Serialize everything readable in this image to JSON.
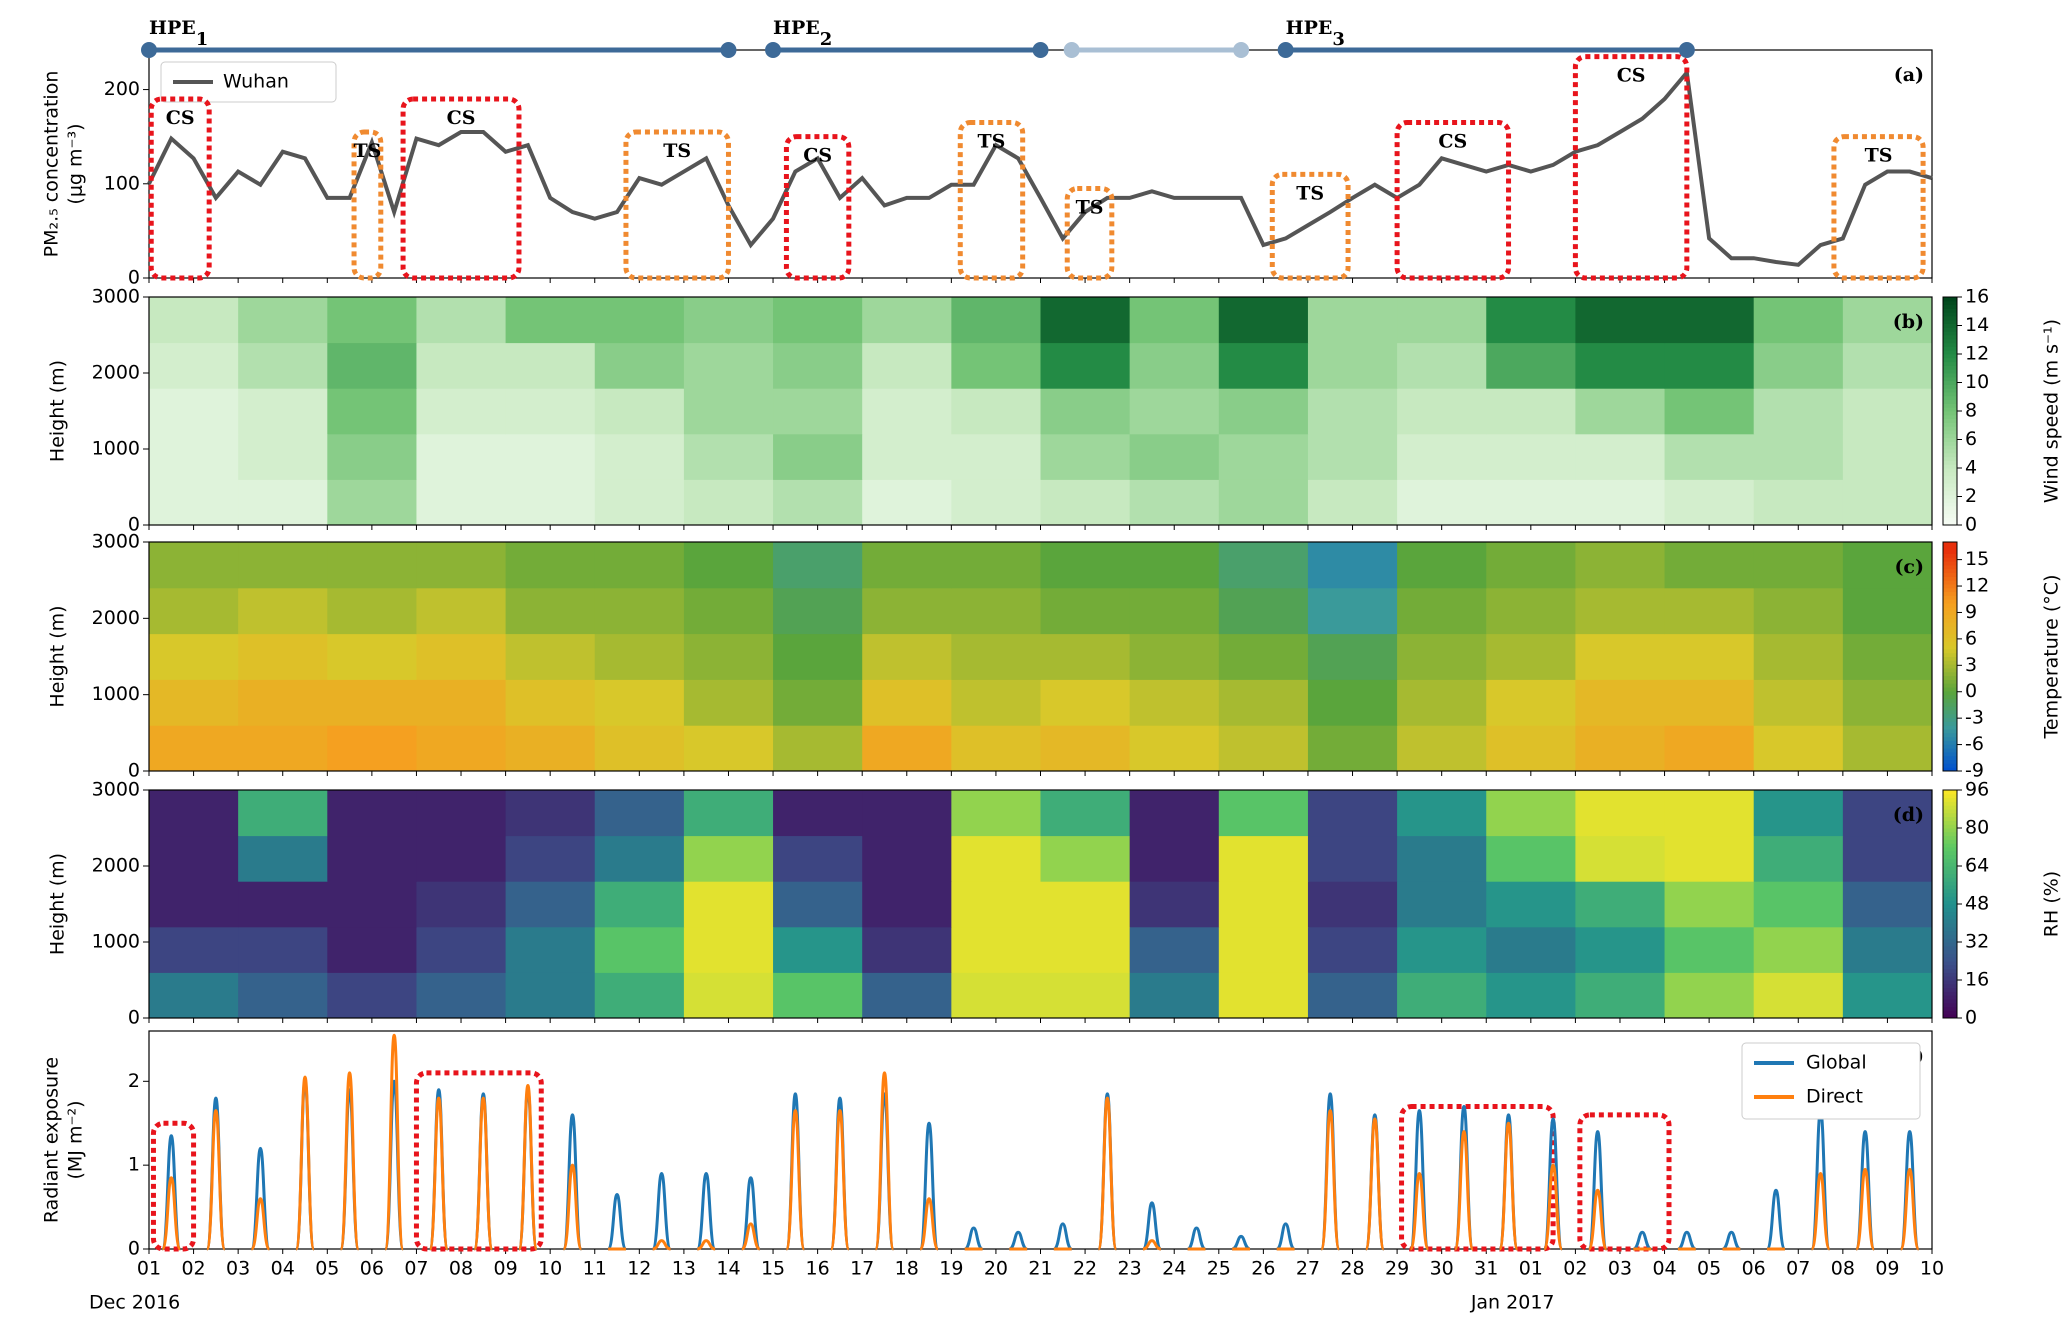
{
  "chart_data": [
    {
      "type": "line",
      "panel_label": "(a)",
      "ylabel": [
        "PM₂.₅ concentration",
        "(μg m⁻³)"
      ],
      "x": [
        0,
        0.5,
        1,
        1.5,
        2,
        2.5,
        3,
        3.5,
        4,
        4.5,
        5,
        5.5,
        6,
        6.5,
        7,
        7.5,
        8,
        8.5,
        9,
        9.5,
        10,
        10.5,
        11,
        11.5,
        12,
        12.5,
        13,
        13.5,
        14,
        14.5,
        15,
        15.5,
        16,
        16.5,
        17,
        17.5,
        18,
        18.5,
        19,
        19.5,
        20,
        20.5,
        21,
        21.5,
        22,
        22.5,
        23,
        23.5,
        24,
        24.5,
        25,
        25.5,
        26,
        26.5,
        27,
        27.5,
        28,
        28.5,
        29,
        29.5,
        30,
        30.5,
        31,
        31.5,
        32,
        32.5,
        33,
        33.5,
        34,
        34.5,
        35,
        35.5,
        36,
        36.5,
        37,
        37.5,
        38,
        38.5,
        39,
        39.5,
        40
      ],
      "series": [
        {
          "name": "Wuhan",
          "color": "#555555",
          "values": [
            100,
            148,
            127,
            85,
            113,
            99,
            134,
            127,
            85,
            85,
            144,
            70,
            148,
            141,
            155,
            155,
            134,
            141,
            85,
            70,
            63,
            70,
            106,
            99,
            113,
            127,
            77,
            35,
            63,
            113,
            127,
            85,
            106,
            77,
            85,
            85,
            99,
            99,
            141,
            127,
            85,
            42,
            70,
            85,
            85,
            92,
            85,
            85,
            85,
            85,
            35,
            42,
            56,
            70,
            85,
            99,
            85,
            99,
            127,
            120,
            113,
            120,
            113,
            120,
            134,
            141,
            155,
            169,
            190,
            218,
            42,
            21,
            21,
            17,
            14,
            35,
            42,
            99,
            113,
            113,
            106
          ]
        }
      ],
      "xlim": [
        0,
        40
      ],
      "ylim": [
        0,
        242
      ],
      "yticks": [
        0,
        100,
        200
      ],
      "annotations": [
        {
          "text": "CS",
          "color": "#e8141c",
          "x0": 0.05,
          "x1": 1.35,
          "y0": 0,
          "y1": 190
        },
        {
          "text": "TS",
          "color": "#f08a30",
          "x0": 4.6,
          "x1": 5.2,
          "y0": 0,
          "y1": 155
        },
        {
          "text": "CS",
          "color": "#e8141c",
          "x0": 5.7,
          "x1": 8.3,
          "y0": 0,
          "y1": 190
        },
        {
          "text": "TS",
          "color": "#f08a30",
          "x0": 10.7,
          "x1": 13.0,
          "y0": 0,
          "y1": 155
        },
        {
          "text": "CS",
          "color": "#e8141c",
          "x0": 14.3,
          "x1": 15.7,
          "y0": 0,
          "y1": 150
        },
        {
          "text": "TS",
          "color": "#f08a30",
          "x0": 18.2,
          "x1": 19.6,
          "y0": 0,
          "y1": 165
        },
        {
          "text": "TS",
          "color": "#f08a30",
          "x0": 20.6,
          "x1": 21.6,
          "y0": 0,
          "y1": 95
        },
        {
          "text": "TS",
          "color": "#f08a30",
          "x0": 25.2,
          "x1": 26.9,
          "y0": 0,
          "y1": 110
        },
        {
          "text": "CS",
          "color": "#e8141c",
          "x0": 28.0,
          "x1": 30.5,
          "y0": 0,
          "y1": 165
        },
        {
          "text": "CS",
          "color": "#e8141c",
          "x0": 32.0,
          "x1": 34.5,
          "y0": 0,
          "y1": 235
        },
        {
          "text": "TS",
          "color": "#f08a30",
          "x0": 37.8,
          "x1": 39.8,
          "y0": 0,
          "y1": 150
        }
      ],
      "events": [
        {
          "name": "HPE",
          "sub": "1",
          "start": 0,
          "end": 13,
          "color": "#3d6a98"
        },
        {
          "name": "HPE",
          "sub": "2",
          "start": 14,
          "end": 20,
          "color": "#3d6a98"
        },
        {
          "start": 20.7,
          "end": 24.5,
          "color": "#a9bfd4"
        },
        {
          "name": "HPE",
          "sub": "3",
          "start": 25.5,
          "end": 34.5,
          "color": "#3d6a98"
        }
      ]
    },
    {
      "type": "heatmap",
      "panel_label": "(b)",
      "ylabel": "Height (m)",
      "colorbar_label": "Wind speed (m s⁻¹)",
      "x_edges": [
        0,
        2,
        4,
        6,
        8,
        10,
        12,
        14,
        16,
        18,
        20,
        22,
        24,
        26,
        28,
        30,
        32,
        34,
        36,
        38,
        40
      ],
      "y_edges": [
        0,
        600,
        1200,
        1800,
        2400,
        3000
      ],
      "values": [
        [
          2,
          2,
          6,
          2,
          2,
          3,
          4,
          5,
          2,
          3,
          4,
          5,
          6,
          4,
          2,
          2,
          2,
          3,
          4,
          4
        ],
        [
          2,
          3,
          7,
          2,
          2,
          3,
          5,
          7,
          3,
          3,
          6,
          7,
          6,
          5,
          3,
          3,
          3,
          5,
          5,
          4
        ],
        [
          2,
          3,
          8,
          3,
          3,
          4,
          6,
          6,
          3,
          4,
          7,
          6,
          7,
          5,
          4,
          4,
          6,
          8,
          5,
          4
        ],
        [
          3,
          5,
          9,
          4,
          4,
          7,
          6,
          7,
          4,
          8,
          12,
          7,
          12,
          6,
          5,
          10,
          12,
          12,
          7,
          5
        ],
        [
          4,
          6,
          8,
          5,
          8,
          8,
          7,
          8,
          6,
          9,
          14,
          8,
          14,
          6,
          6,
          12,
          14,
          14,
          8,
          6
        ]
      ],
      "colorstops": [
        [
          0,
          "#f7fcf5"
        ],
        [
          4,
          "#c7e9c0"
        ],
        [
          8,
          "#74c476"
        ],
        [
          12,
          "#238b45"
        ],
        [
          16,
          "#00441b"
        ]
      ],
      "xlim": [
        0,
        40
      ],
      "ylim": [
        0,
        3000
      ],
      "yticks": [
        0,
        1000,
        2000,
        3000
      ],
      "clim": [
        0,
        16
      ],
      "colorbar_ticks": [
        0,
        2,
        4,
        6,
        8,
        10,
        12,
        14,
        16
      ]
    },
    {
      "type": "heatmap",
      "panel_label": "(c)",
      "ylabel": "Height (m)",
      "colorbar_label": "Temperature (°C)",
      "x_edges": [
        0,
        2,
        4,
        6,
        8,
        10,
        12,
        14,
        16,
        18,
        20,
        22,
        24,
        26,
        28,
        30,
        32,
        34,
        36,
        38,
        40
      ],
      "y_edges": [
        0,
        600,
        1200,
        1800,
        2400,
        3000
      ],
      "values": [
        [
          9,
          9,
          10,
          9,
          8,
          6,
          5,
          3,
          9,
          6,
          7,
          5,
          4,
          1,
          4,
          6,
          8,
          9,
          5,
          3
        ],
        [
          7,
          8,
          8,
          8,
          6,
          5,
          3,
          1,
          6,
          4,
          5,
          4,
          3,
          0,
          3,
          5,
          7,
          7,
          4,
          2
        ],
        [
          5,
          6,
          5,
          6,
          4,
          3,
          2,
          0,
          4,
          3,
          3,
          2,
          1,
          -1,
          2,
          3,
          5,
          5,
          3,
          1
        ],
        [
          3,
          4,
          3,
          4,
          2,
          2,
          1,
          -1,
          2,
          2,
          1,
          1,
          -1,
          -4,
          1,
          2,
          3,
          3,
          2,
          0
        ],
        [
          2,
          2,
          2,
          2,
          1,
          1,
          0,
          -2,
          1,
          1,
          0,
          0,
          -2,
          -5,
          0,
          1,
          2,
          1,
          1,
          0
        ]
      ],
      "colorstops": [
        [
          -9,
          "#0050d0"
        ],
        [
          -4,
          "#3a9a9a"
        ],
        [
          0,
          "#5aa53c"
        ],
        [
          5,
          "#d8c82a"
        ],
        [
          10,
          "#f5a020"
        ],
        [
          16,
          "#e8300c"
        ]
      ],
      "xlim": [
        0,
        40
      ],
      "ylim": [
        0,
        3000
      ],
      "yticks": [
        0,
        1000,
        2000,
        3000
      ],
      "clim": [
        -9,
        17
      ],
      "colorbar_ticks": [
        -9,
        -6,
        -3,
        0,
        3,
        6,
        9,
        12,
        15
      ]
    },
    {
      "type": "heatmap",
      "panel_label": "(d)",
      "ylabel": "Height (m)",
      "colorbar_label": "RH (%)",
      "x_edges": [
        0,
        2,
        4,
        6,
        8,
        10,
        12,
        14,
        16,
        18,
        20,
        22,
        24,
        26,
        28,
        30,
        32,
        34,
        36,
        38,
        40
      ],
      "y_edges": [
        0,
        600,
        1200,
        1800,
        2400,
        3000
      ],
      "values": [
        [
          40,
          30,
          20,
          30,
          40,
          60,
          90,
          70,
          30,
          90,
          90,
          40,
          92,
          30,
          60,
          50,
          60,
          80,
          90,
          50
        ],
        [
          20,
          20,
          10,
          20,
          40,
          70,
          92,
          50,
          15,
          92,
          92,
          30,
          92,
          20,
          50,
          40,
          50,
          70,
          80,
          40
        ],
        [
          10,
          10,
          10,
          15,
          30,
          60,
          92,
          30,
          10,
          92,
          92,
          15,
          92,
          15,
          40,
          50,
          60,
          80,
          70,
          30
        ],
        [
          10,
          40,
          10,
          10,
          20,
          40,
          80,
          20,
          10,
          92,
          80,
          10,
          92,
          20,
          40,
          70,
          90,
          92,
          60,
          20
        ],
        [
          10,
          60,
          10,
          10,
          15,
          30,
          60,
          10,
          10,
          80,
          60,
          10,
          70,
          20,
          50,
          80,
          92,
          92,
          50,
          20
        ]
      ],
      "colorstops": [
        [
          0,
          "#440154"
        ],
        [
          24,
          "#3b528b"
        ],
        [
          48,
          "#21908d"
        ],
        [
          72,
          "#5dc963"
        ],
        [
          96,
          "#fde725"
        ]
      ],
      "xlim": [
        0,
        40
      ],
      "ylim": [
        0,
        3000
      ],
      "yticks": [
        0,
        1000,
        2000,
        3000
      ],
      "clim": [
        0,
        96
      ],
      "colorbar_ticks": [
        0,
        16,
        32,
        48,
        64,
        80,
        96
      ]
    },
    {
      "type": "spike",
      "panel_label": "(e)",
      "ylabel": [
        "Radiant exposure",
        "(MJ m⁻²)"
      ],
      "x": [
        0.5,
        1.5,
        2.5,
        3.5,
        4.5,
        5.5,
        6.5,
        7.5,
        8.5,
        9.5,
        10.5,
        11.5,
        12.5,
        13.5,
        14.5,
        15.5,
        16.5,
        17.5,
        18.5,
        19.5,
        20.5,
        21.5,
        22.5,
        23.5,
        24.5,
        25.5,
        26.5,
        27.5,
        28.5,
        29.5,
        30.5,
        31.5,
        32.5,
        33.5,
        34.5,
        35.5,
        36.5,
        37.5,
        38.5,
        39.5
      ],
      "series": [
        {
          "name": "Global",
          "color": "#1f77b4",
          "values": [
            1.35,
            1.8,
            1.2,
            2.0,
            1.9,
            2.0,
            1.9,
            1.85,
            1.9,
            1.6,
            0.65,
            0.9,
            0.9,
            0.85,
            1.85,
            1.8,
            1.85,
            1.5,
            0.25,
            0.2,
            0.3,
            1.85,
            0.55,
            0.25,
            0.15,
            0.3,
            1.85,
            1.6,
            1.65,
            1.7,
            1.6,
            1.55,
            1.4,
            0.2,
            0.2,
            0.2,
            0.7,
            1.65,
            1.4,
            1.4
          ]
        },
        {
          "name": "Direct",
          "color": "#ff7f0e",
          "values": [
            0.85,
            1.65,
            0.6,
            2.05,
            2.1,
            2.55,
            1.8,
            1.8,
            1.95,
            1.0,
            0,
            0.1,
            0.1,
            0.3,
            1.65,
            1.65,
            2.1,
            0.6,
            0,
            0,
            0,
            1.8,
            0.1,
            0,
            0,
            0,
            1.65,
            1.55,
            0.9,
            1.4,
            1.5,
            1.0,
            0.7,
            0,
            0,
            0,
            0,
            0.9,
            0.95,
            0.95
          ]
        }
      ],
      "xlim": [
        0,
        40
      ],
      "ylim": [
        0,
        2.6
      ],
      "yticks": [
        0,
        1,
        2
      ],
      "annotations": [
        {
          "color": "#e8141c",
          "x0": 0.1,
          "x1": 1.0,
          "y0": 0,
          "y1": 1.5
        },
        {
          "color": "#e8141c",
          "x0": 6.0,
          "x1": 8.8,
          "y0": 0,
          "y1": 2.1
        },
        {
          "color": "#e8141c",
          "x0": 28.1,
          "x1": 31.5,
          "y0": 0,
          "y1": 1.7
        },
        {
          "color": "#e8141c",
          "x0": 32.1,
          "x1": 34.1,
          "y0": 0,
          "y1": 1.6
        }
      ],
      "xticks": [
        {
          "value": 0,
          "label": "01"
        },
        {
          "value": 1,
          "label": "02"
        },
        {
          "value": 2,
          "label": "03"
        },
        {
          "value": 3,
          "label": "04"
        },
        {
          "value": 4,
          "label": "05"
        },
        {
          "value": 5,
          "label": "06"
        },
        {
          "value": 6,
          "label": "07"
        },
        {
          "value": 7,
          "label": "08"
        },
        {
          "value": 8,
          "label": "09"
        },
        {
          "value": 9,
          "label": "10"
        },
        {
          "value": 10,
          "label": "11"
        },
        {
          "value": 11,
          "label": "12"
        },
        {
          "value": 12,
          "label": "13"
        },
        {
          "value": 13,
          "label": "14"
        },
        {
          "value": 14,
          "label": "15"
        },
        {
          "value": 15,
          "label": "16"
        },
        {
          "value": 16,
          "label": "17"
        },
        {
          "value": 17,
          "label": "18"
        },
        {
          "value": 18,
          "label": "19"
        },
        {
          "value": 19,
          "label": "20"
        },
        {
          "value": 20,
          "label": "21"
        },
        {
          "value": 21,
          "label": "22"
        },
        {
          "value": 22,
          "label": "23"
        },
        {
          "value": 23,
          "label": "24"
        },
        {
          "value": 24,
          "label": "25"
        },
        {
          "value": 25,
          "label": "26"
        },
        {
          "value": 26,
          "label": "27"
        },
        {
          "value": 27,
          "label": "28"
        },
        {
          "value": 28,
          "label": "29"
        },
        {
          "value": 29,
          "label": "30"
        },
        {
          "value": 30,
          "label": "31"
        },
        {
          "value": 31,
          "label": "01"
        },
        {
          "value": 32,
          "label": "02"
        },
        {
          "value": 33,
          "label": "03"
        },
        {
          "value": 34,
          "label": "04"
        },
        {
          "value": 35,
          "label": "05"
        },
        {
          "value": 36,
          "label": "06"
        },
        {
          "value": 37,
          "label": "07"
        },
        {
          "value": 38,
          "label": "08"
        },
        {
          "value": 39,
          "label": "09"
        },
        {
          "value": 40,
          "label": "10"
        }
      ],
      "xgroup_labels": [
        {
          "value": 0,
          "label": "Dec  2016"
        },
        {
          "value": 31,
          "label": "Jan  2017"
        }
      ]
    }
  ]
}
